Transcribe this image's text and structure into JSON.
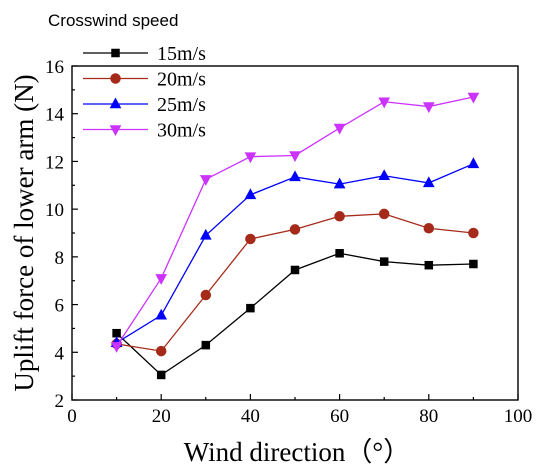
{
  "chart_data": {
    "type": "line",
    "xlabel": "Wind direction（°）",
    "ylabel": "Uplift force of lower arm (N)",
    "xlim": [
      0,
      100
    ],
    "ylim": [
      2,
      16
    ],
    "xticks": [
      "0",
      "20",
      "40",
      "60",
      "80",
      "100"
    ],
    "yticks": [
      "2",
      "4",
      "6",
      "8",
      "10",
      "12",
      "14",
      "16"
    ],
    "grid": false,
    "legend": {
      "title": "Crosswind speed",
      "placement": "top-left"
    },
    "x": [
      10,
      20,
      30,
      40,
      50,
      60,
      70,
      80,
      90
    ],
    "series": [
      {
        "name": "15m/s",
        "color": "#000000",
        "marker": "square",
        "values": [
          4.8,
          3.05,
          4.3,
          5.85,
          7.45,
          8.15,
          7.8,
          7.65,
          7.7
        ]
      },
      {
        "name": "20m/s",
        "color": "#a52a1a",
        "marker": "circle",
        "values": [
          4.35,
          4.05,
          6.4,
          8.75,
          9.15,
          9.7,
          9.8,
          9.2,
          9.0
        ]
      },
      {
        "name": "25m/s",
        "color": "#0000ff",
        "marker": "triangle-up",
        "values": [
          4.4,
          5.55,
          8.9,
          10.6,
          11.35,
          11.05,
          11.4,
          11.1,
          11.9
        ]
      },
      {
        "name": "30m/s",
        "color": "#cc33ff",
        "marker": "triangle-down",
        "values": [
          4.25,
          7.1,
          11.25,
          12.2,
          12.25,
          13.4,
          14.5,
          14.3,
          14.7
        ]
      }
    ]
  }
}
